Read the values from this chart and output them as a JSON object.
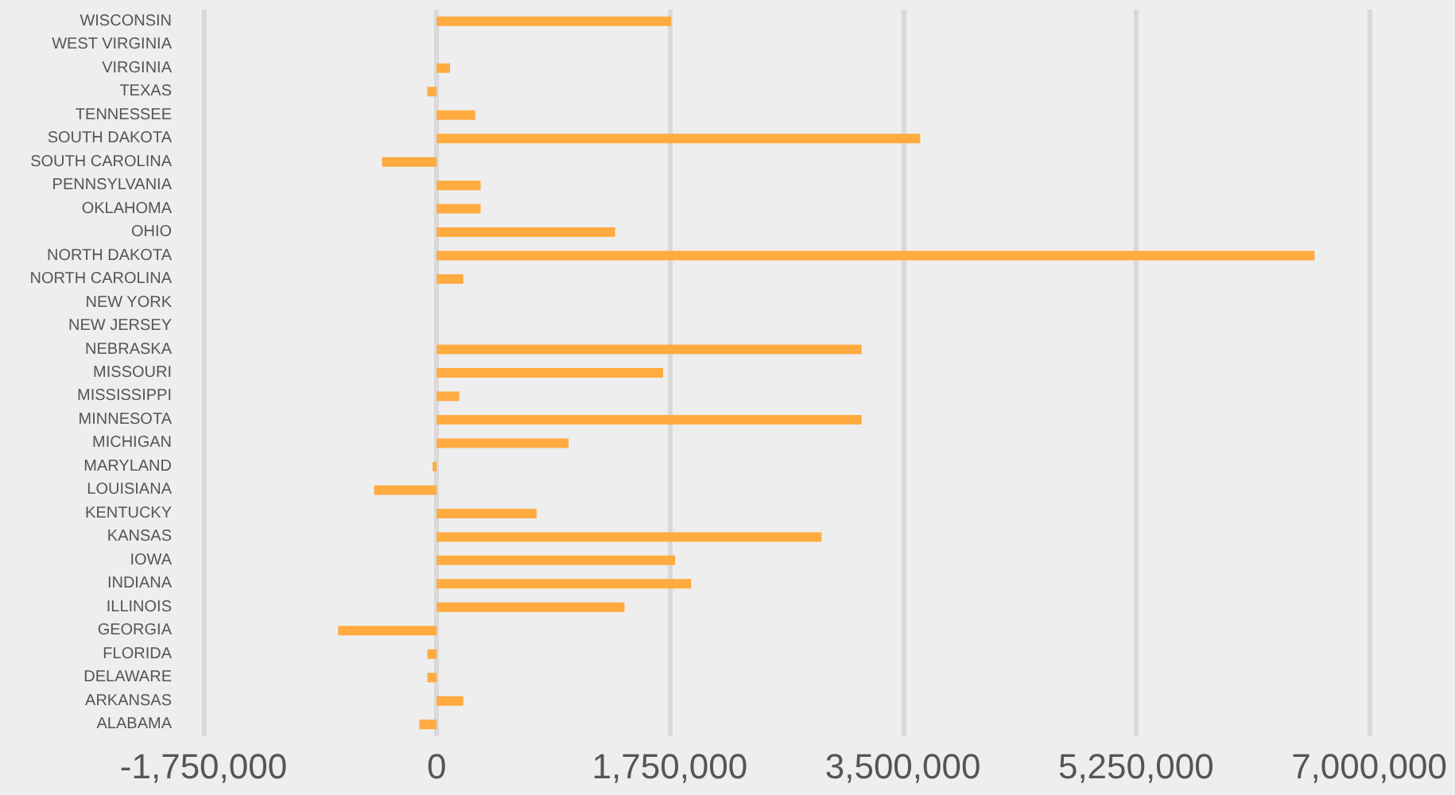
{
  "chart_data": {
    "type": "bar",
    "orientation": "horizontal",
    "categories": [
      "WISCONSIN",
      "WEST VIRGINIA",
      "VIRGINIA",
      "TEXAS",
      "TENNESSEE",
      "SOUTH DAKOTA",
      "SOUTH CAROLINA",
      "PENNSYLVANIA",
      "OKLAHOMA",
      "OHIO",
      "NORTH DAKOTA",
      "NORTH CAROLINA",
      "NEW YORK",
      "NEW JERSEY",
      "NEBRASKA",
      "MISSOURI",
      "MISSISSIPPI",
      "MINNESOTA",
      "MICHIGAN",
      "MARYLAND",
      "LOUISIANA",
      "KENTUCKY",
      "KANSAS",
      "IOWA",
      "INDIANA",
      "ILLINOIS",
      "GEORGIA",
      "FLORIDA",
      "DELAWARE",
      "ARKANSAS",
      "ALABAMA"
    ],
    "values": [
      1760000,
      0,
      100000,
      -70000,
      290000,
      3630000,
      -410000,
      330000,
      330000,
      1340000,
      6590000,
      200000,
      0,
      0,
      3190000,
      1700000,
      170000,
      3190000,
      990000,
      -30000,
      -470000,
      750000,
      2890000,
      1790000,
      1910000,
      1410000,
      -740000,
      -70000,
      -70000,
      200000,
      -130000
    ],
    "color": "#ffab40",
    "xlim": [
      -1750000,
      7000000
    ],
    "xticks": [
      {
        "value": -1750000,
        "label": "-1,750,000"
      },
      {
        "value": 0,
        "label": "0"
      },
      {
        "value": 1750000,
        "label": "1,750,000"
      },
      {
        "value": 3500000,
        "label": "3,500,000"
      },
      {
        "value": 5250000,
        "label": "5,250,000"
      },
      {
        "value": 7000000,
        "label": "7,000,000"
      }
    ],
    "grid": "x"
  }
}
